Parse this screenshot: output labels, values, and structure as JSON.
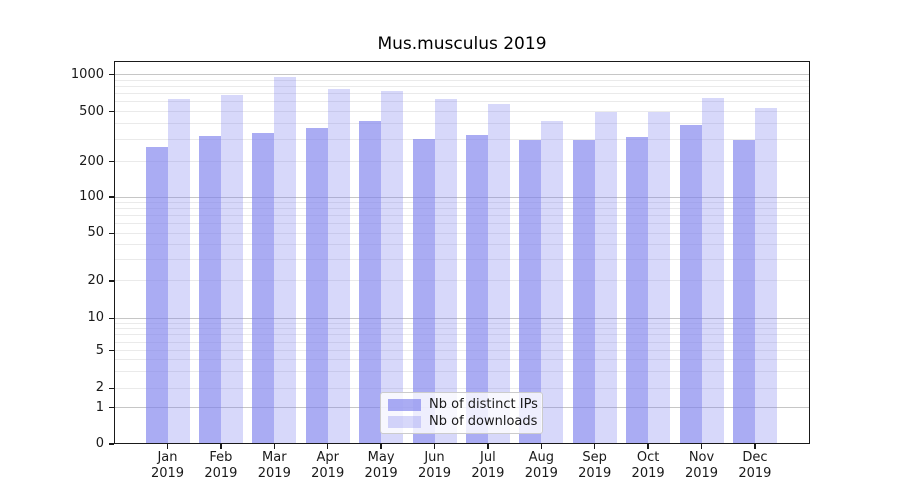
{
  "chart_data": {
    "type": "bar",
    "title": "Mus.musculus 2019",
    "categories": [
      "Jan",
      "Feb",
      "Mar",
      "Apr",
      "May",
      "Jun",
      "Jul",
      "Aug",
      "Sep",
      "Oct",
      "Nov",
      "Dec"
    ],
    "category_year": "2019",
    "series": [
      {
        "name": "Nb of distinct IPs",
        "values": [
          260,
          320,
          340,
          370,
          420,
          305,
          325,
          295,
          295,
          315,
          390,
          300
        ],
        "color": "rgba(124,127,237,0.65)"
      },
      {
        "name": "Nb of downloads",
        "values": [
          640,
          680,
          950,
          760,
          735,
          630,
          580,
          425,
          500,
          500,
          650,
          540
        ],
        "color": "rgba(124,127,237,0.30)"
      }
    ],
    "xlabel": "",
    "ylabel": "",
    "yscale": "symlog",
    "yticks": [
      1000,
      500,
      200,
      100,
      50,
      20,
      10,
      5,
      2,
      1,
      0
    ],
    "ylim": [
      0,
      1320
    ],
    "grid": "horizontal major and minor, drawn under translucent bars",
    "legend_position": "lower center inside axes",
    "scale_anchors": [
      [
        0,
        0.0
      ],
      [
        1,
        0.0953
      ],
      [
        2,
        0.1454
      ],
      [
        5,
        0.2436
      ],
      [
        10,
        0.3282
      ],
      [
        20,
        0.4256
      ],
      [
        50,
        0.5501
      ],
      [
        100,
        0.6449
      ],
      [
        200,
        0.7371
      ],
      [
        500,
        0.8677
      ],
      [
        1000,
        0.9642
      ]
    ]
  },
  "legend": {
    "items": [
      {
        "label": "Nb of distinct IPs",
        "color": "rgba(124,127,237,0.65)"
      },
      {
        "label": "Nb of downloads",
        "color": "rgba(124,127,237,0.30)"
      }
    ]
  },
  "colors": {
    "bar_base": "#7c7fed",
    "major_grid": "#c6c6c6",
    "minor_grid": "#eaeaea",
    "axis": "#1a1a1a",
    "legend_border": "#cccccc",
    "figure_background": "#ffffff"
  }
}
